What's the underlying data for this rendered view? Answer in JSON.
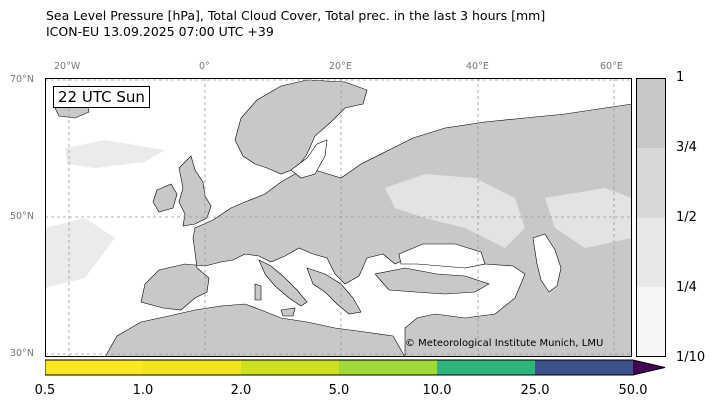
{
  "header": {
    "line1": "Sea Level Pressure [hPa], Total Cloud Cover, Total prec. in the last 3 hours [mm]",
    "line2": "ICON-EU 13.09.2025 07:00 UTC +39"
  },
  "map": {
    "time_label": "22 UTC Sun",
    "copyright": "© Meteorological Institute Munich, LMU",
    "lon_labels": [
      "20°W",
      "0°",
      "20°E",
      "40°E",
      "60°E"
    ],
    "lat_labels": [
      "70°N",
      "50°N",
      "30°N"
    ],
    "colors": {
      "land": "#c8c8c8",
      "sea": "#ffffff",
      "coast": "#000000",
      "grid": "#999999"
    }
  },
  "cloud_cover_bar": {
    "ticks": [
      "1",
      "3/4",
      "1/2",
      "1/4",
      "1/10"
    ],
    "colors": [
      "#c8c8c8",
      "#d8d8d8",
      "#e8e8e8",
      "#f6f6f6"
    ]
  },
  "precip_bar": {
    "ticks": [
      "0.5",
      "1.0",
      "2.0",
      "5.0",
      "10.0",
      "25.0",
      "50.0"
    ],
    "colors": [
      "#fde725",
      "#e3e21d",
      "#bddf26",
      "#a0da39",
      "#2fb47c",
      "#3b528b",
      "#440154"
    ]
  }
}
